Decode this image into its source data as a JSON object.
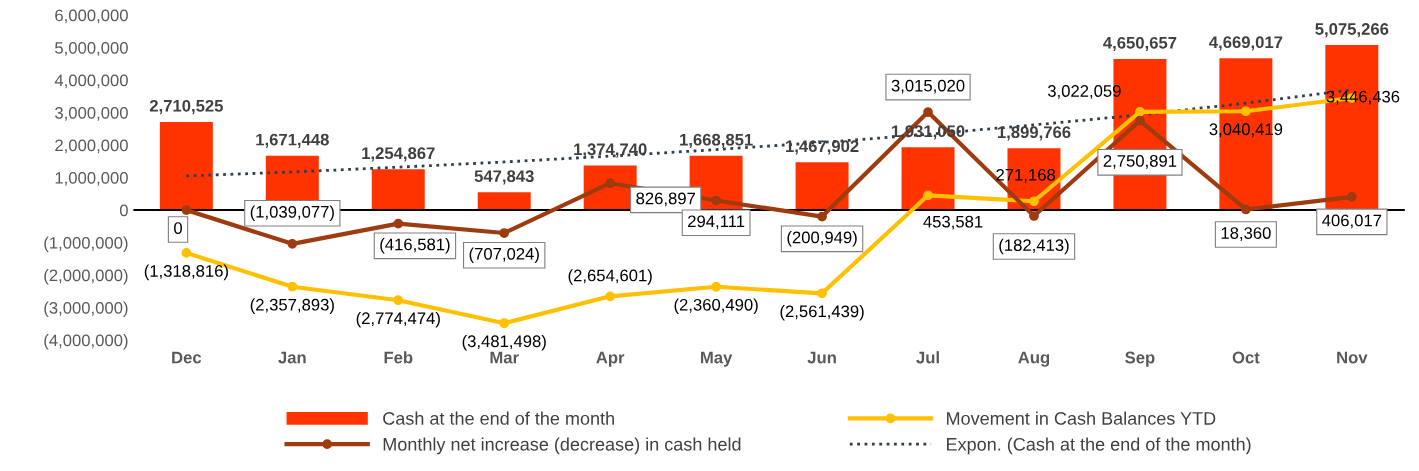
{
  "chart_data": {
    "type": "bar",
    "categories": [
      "Dec",
      "Jan",
      "Feb",
      "Mar",
      "Apr",
      "May",
      "Jun",
      "Jul",
      "Aug",
      "Sep",
      "Oct",
      "Nov"
    ],
    "series": [
      {
        "name": "Cash at the end of the month",
        "color": "#ff3300",
        "values": [
          2710525,
          1671448,
          1254867,
          547843,
          1374740,
          1668851,
          1467902,
          1931050,
          1899766,
          4650657,
          4669017,
          5075266
        ],
        "value_labels": [
          "2,710,525",
          "1,671,448",
          "1,254,867",
          "547,843",
          "1,374,740",
          "1,668,851",
          "1,467,902",
          "1,931,050",
          "1,899,766",
          "4,650,657",
          "4,669,017",
          "5,075,266"
        ]
      },
      {
        "name": "Movement in Cash Balances YTD",
        "type": "line",
        "color": "#ffc000",
        "marker": "circle",
        "line_style": "solid",
        "values": [
          -1318816,
          -2357893,
          -2774474,
          -3481498,
          -2654601,
          -2360490,
          -2561439,
          453581,
          271168,
          3022059,
          3040419,
          3446436
        ],
        "value_labels": [
          "(1,318,816)",
          "(2,357,893)",
          "(2,774,474)",
          "(3,481,498)",
          "(2,654,601)",
          "(2,360,490)",
          "(2,561,439)",
          "453,581",
          "271,168",
          "3,022,059",
          "3,040,419",
          "3,446,436"
        ]
      },
      {
        "name": "Monthly net increase (decrease) in cash held",
        "type": "line",
        "color": "#9e3b0f",
        "marker": "circle",
        "line_style": "solid",
        "values": [
          0,
          -1039077,
          -416581,
          -707024,
          826897,
          294111,
          -200949,
          3015020,
          -182413,
          2750891,
          18360,
          406017
        ],
        "value_labels": [
          "0",
          "(1,039,077)",
          "(416,581)",
          "(707,024)",
          "826,897",
          "294,111",
          "(200,949)",
          "3,015,020",
          "(182,413)",
          "2,750,891",
          "18,360",
          "406,017"
        ]
      },
      {
        "name": "Expon. (Cash at the end of the month)",
        "type": "line",
        "color": "#2f3e4e",
        "marker": "none",
        "line_style": "dotted",
        "values": [
          1050000,
          1170000,
          1320000,
          1480000,
          1660000,
          1860000,
          2080000,
          2330000,
          2620000,
          2930000,
          3290000,
          3700000
        ]
      }
    ],
    "ylim": [
      -4000000,
      6000000
    ],
    "yticks": [
      {
        "value": -4000000,
        "label": "(4,000,000)"
      },
      {
        "value": -3000000,
        "label": "(3,000,000)"
      },
      {
        "value": -2000000,
        "label": "(2,000,000)"
      },
      {
        "value": -1000000,
        "label": "(1,000,000)"
      },
      {
        "value": 0,
        "label": "0"
      },
      {
        "value": 1000000,
        "label": "1,000,000"
      },
      {
        "value": 2000000,
        "label": "2,000,000"
      },
      {
        "value": 3000000,
        "label": "3,000,000"
      },
      {
        "value": 4000000,
        "label": "4,000,000"
      },
      {
        "value": 5000000,
        "label": "5,000,000"
      },
      {
        "value": 6000000,
        "label": "6,000,000"
      }
    ],
    "ref_lines": [
      {
        "axis": "y",
        "value": 0,
        "color": "#000000",
        "line_style": "solid"
      }
    ],
    "grid": false,
    "legend": "bottom"
  }
}
